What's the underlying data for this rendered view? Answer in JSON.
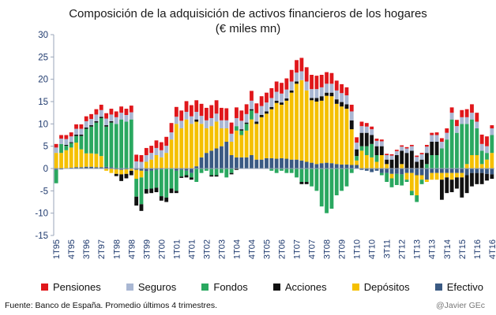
{
  "chart_data": {
    "type": "bar",
    "stacked": true,
    "title": "Composición de la adquisición de activos financieros de los hogares",
    "subtitle": "(€ miles mn)",
    "ylim": [
      -15,
      30
    ],
    "yticks": [
      -15,
      -10,
      -5,
      0,
      5,
      10,
      15,
      20,
      25,
      30
    ],
    "x_tick_labels": [
      "1T95",
      "4T95",
      "3T96",
      "2T97",
      "1T98",
      "4T98",
      "3T99",
      "2T00",
      "1T01",
      "4T01",
      "3T02",
      "2T03",
      "1T04",
      "4T04",
      "3T05",
      "2T06",
      "1T07",
      "4T07",
      "3T08",
      "2T09",
      "1T10",
      "4T10",
      "3T11",
      "2T12",
      "1T13",
      "4T13",
      "3T14",
      "2T15",
      "1T16",
      "4T16"
    ],
    "x_tick_every": 3,
    "categories": [
      "1T95",
      "2T95",
      "3T95",
      "4T95",
      "1T96",
      "2T96",
      "3T96",
      "4T96",
      "1T97",
      "2T97",
      "3T97",
      "4T97",
      "1T98",
      "2T98",
      "3T98",
      "4T98",
      "1T99",
      "2T99",
      "3T99",
      "4T99",
      "1T00",
      "2T00",
      "3T00",
      "4T00",
      "1T01",
      "2T01",
      "3T01",
      "4T01",
      "1T02",
      "2T02",
      "3T02",
      "4T02",
      "1T03",
      "2T03",
      "3T03",
      "4T03",
      "1T04",
      "2T04",
      "3T04",
      "4T04",
      "1T05",
      "2T05",
      "3T05",
      "4T05",
      "1T06",
      "2T06",
      "3T06",
      "4T06",
      "1T07",
      "2T07",
      "3T07",
      "4T07",
      "1T08",
      "2T08",
      "3T08",
      "4T08",
      "1T09",
      "2T09",
      "3T09",
      "4T09",
      "1T10",
      "2T10",
      "3T10",
      "4T10",
      "1T11",
      "2T11",
      "3T11",
      "4T11",
      "1T12",
      "2T12",
      "3T12",
      "4T12",
      "1T13",
      "2T13",
      "3T13",
      "4T13",
      "1T14",
      "2T14",
      "3T14",
      "4T14",
      "1T15",
      "2T15",
      "3T15",
      "4T15",
      "1T16",
      "2T16",
      "3T16",
      "4T16"
    ],
    "series": [
      {
        "name": "Efectivo",
        "color": "#3b5a83",
        "values": [
          -0.3,
          -0.2,
          0.1,
          0.2,
          0.3,
          0.3,
          0.4,
          0.4,
          0.3,
          0.3,
          0.4,
          0.3,
          -0.2,
          -0.3,
          -0.2,
          0,
          -0.3,
          -0.5,
          -0.6,
          -0.5,
          -0.3,
          -0.2,
          0,
          0,
          -0.5,
          -0.3,
          -0.5,
          -1,
          0.5,
          2.5,
          3.5,
          4,
          4.5,
          5,
          6,
          3,
          2.5,
          2.5,
          2.5,
          3,
          2,
          2,
          2.3,
          2.3,
          2.2,
          2.3,
          2.2,
          2,
          2,
          1.8,
          1.5,
          1.3,
          1,
          1.2,
          1.3,
          1.2,
          1,
          0.9,
          0.9,
          0.8,
          0.8,
          -0.3,
          -0.5,
          -0.8,
          -0.5,
          -1,
          -1,
          -1.2,
          -1.2,
          -1.3,
          -1,
          -1,
          -1.5,
          -1.5,
          -2.5,
          -1,
          -1,
          -1,
          -1,
          -1,
          -1,
          -1,
          -1.5,
          -1,
          -1,
          -1,
          -1.2,
          -1.3
        ]
      },
      {
        "name": "Depósitos",
        "color": "#f5c000",
        "values": [
          3.5,
          3.5,
          4,
          4.5,
          5.5,
          4,
          3,
          3,
          3,
          2.5,
          -0.5,
          -1,
          -1,
          -1,
          -1,
          -0.5,
          -2,
          -1.5,
          1.5,
          2,
          3,
          2.5,
          3.5,
          6.5,
          10,
          9,
          11,
          10,
          10,
          7.5,
          5.5,
          5.5,
          6,
          4,
          3,
          3,
          6,
          5,
          6,
          8,
          8,
          9.5,
          10,
          11,
          12.5,
          12,
          13,
          15,
          17,
          18,
          16,
          14,
          14,
          14,
          15,
          15,
          13.5,
          13,
          12.5,
          8,
          1,
          4,
          3,
          2.5,
          1.5,
          3,
          1,
          -1,
          0,
          1,
          -1.5,
          -4,
          -4.5,
          -1,
          -0.5,
          -1.5,
          -1.5,
          -1.5,
          -1,
          -1.5,
          -1,
          -1,
          1,
          3,
          3,
          1,
          2,
          3.5
        ]
      },
      {
        "name": "Fondos",
        "color": "#2aa860",
        "values": [
          -3,
          2,
          1,
          1,
          1.5,
          3,
          5.5,
          6,
          7,
          8.5,
          9,
          10,
          10,
          11,
          10.5,
          11,
          -4,
          -6,
          -4,
          -4,
          -4,
          -6,
          -6.5,
          -4.5,
          -4.5,
          -1.5,
          -1,
          -1,
          -3,
          -1,
          -0.5,
          -1.5,
          -1.5,
          -1,
          -2,
          -1,
          1,
          1,
          1.5,
          2,
          0,
          0,
          0,
          -0.5,
          -1,
          -0.5,
          -1,
          -1,
          -2,
          -3,
          -3,
          -4,
          -5,
          -8.5,
          -10,
          -9,
          -6,
          -5,
          -4,
          -1,
          1,
          1,
          2,
          3,
          1.5,
          -0.5,
          -2,
          -2,
          -2.5,
          -2.5,
          -0.5,
          -1,
          -1.5,
          -1,
          1,
          3,
          3,
          4.5,
          6.5,
          11,
          8,
          10,
          9,
          8,
          6,
          3,
          1.5,
          4
        ]
      },
      {
        "name": "Acciones",
        "color": "#111111",
        "values": [
          0,
          0,
          0.2,
          0.2,
          0.3,
          0.3,
          0.3,
          0.3,
          0.3,
          0.3,
          0.3,
          0.3,
          -0.5,
          -1.5,
          -1,
          -1,
          -2,
          -1.5,
          -1,
          -1,
          -1,
          -1,
          -1,
          -1,
          -0.5,
          -0.3,
          -0.5,
          -0.5,
          0.5,
          0,
          0,
          -0.3,
          -0.3,
          0,
          0,
          -0.3,
          -0.3,
          0.3,
          0.3,
          0.3,
          0.5,
          0.5,
          0.5,
          0.5,
          0.5,
          0.5,
          0.5,
          0.5,
          0.5,
          -0.5,
          -0.5,
          0.5,
          0.8,
          1,
          0.7,
          0.8,
          1,
          1,
          1,
          2,
          1.5,
          3,
          3,
          2,
          2,
          2,
          1,
          2,
          3,
          3,
          3.5,
          4,
          1.5,
          2,
          2.5,
          3,
          3,
          -4.5,
          -3.5,
          -2.8,
          -2.5,
          -4.5,
          -4,
          -3,
          -2.5,
          -2.5,
          -1.5,
          -1
        ]
      },
      {
        "name": "Seguros",
        "color": "#a9b7d3",
        "values": [
          1.2,
          1.2,
          1.3,
          1.3,
          1.3,
          1.3,
          1.4,
          1.4,
          1.5,
          1.5,
          1.5,
          1.5,
          1.5,
          1.5,
          1.5,
          1.6,
          1.6,
          1.5,
          1.5,
          1.5,
          1.6,
          1.6,
          1.6,
          1.6,
          1.6,
          1.7,
          1.7,
          1.7,
          1.7,
          1.8,
          1.8,
          1.8,
          1.8,
          1.8,
          1.8,
          1.8,
          1.8,
          1.9,
          1.9,
          1.9,
          1.9,
          2,
          2,
          2,
          2,
          2,
          2,
          2,
          2,
          2,
          2,
          2,
          2,
          2,
          2,
          2,
          2,
          2,
          2,
          2,
          1.5,
          1.5,
          1.4,
          1.3,
          1.2,
          1.1,
          1,
          0.9,
          0.9,
          0.9,
          1,
          1,
          1.1,
          1.2,
          1.4,
          1.5,
          1.5,
          1.5,
          1.5,
          1.5,
          1.5,
          1.5,
          1.5,
          1.5,
          1.5,
          1.5,
          1.5,
          1.5
        ]
      },
      {
        "name": "Pensiones",
        "color": "#e0171b",
        "values": [
          0.8,
          0.8,
          0.9,
          0.9,
          1,
          1,
          1.1,
          1.1,
          1.2,
          1.2,
          1.2,
          1.3,
          1.3,
          1.4,
          1.4,
          1.5,
          1.5,
          1.5,
          1.6,
          1.6,
          1.7,
          1.8,
          2,
          2.1,
          2.2,
          2.3,
          2.4,
          2.5,
          2.6,
          2.7,
          2.8,
          2.9,
          3,
          2.8,
          2.7,
          2.5,
          2.4,
          2.3,
          2.2,
          2.2,
          2.2,
          2.2,
          2.2,
          2.2,
          2.3,
          2.4,
          2.5,
          2.6,
          2.8,
          3,
          3.2,
          3.2,
          3,
          2.8,
          2.6,
          2.4,
          2.2,
          2,
          1.8,
          1.5,
          1.2,
          1,
          0.8,
          0.6,
          0.5,
          0.4,
          0.3,
          0.3,
          0.3,
          0.3,
          0.3,
          0.3,
          0.3,
          0.3,
          0.4,
          0.5,
          0.6,
          0.8,
          1,
          1.2,
          1.4,
          1.6,
          1.8,
          1.9,
          2,
          2.1,
          2.2,
          0.7
        ]
      }
    ],
    "legend_order": [
      "Pensiones",
      "Seguros",
      "Fondos",
      "Acciones",
      "Depósitos",
      "Efectivo"
    ]
  },
  "footer": {
    "source": "Fuente: Banco de España. Promedio últimos 4 trimestres.",
    "credit": "@Javier GEc"
  }
}
